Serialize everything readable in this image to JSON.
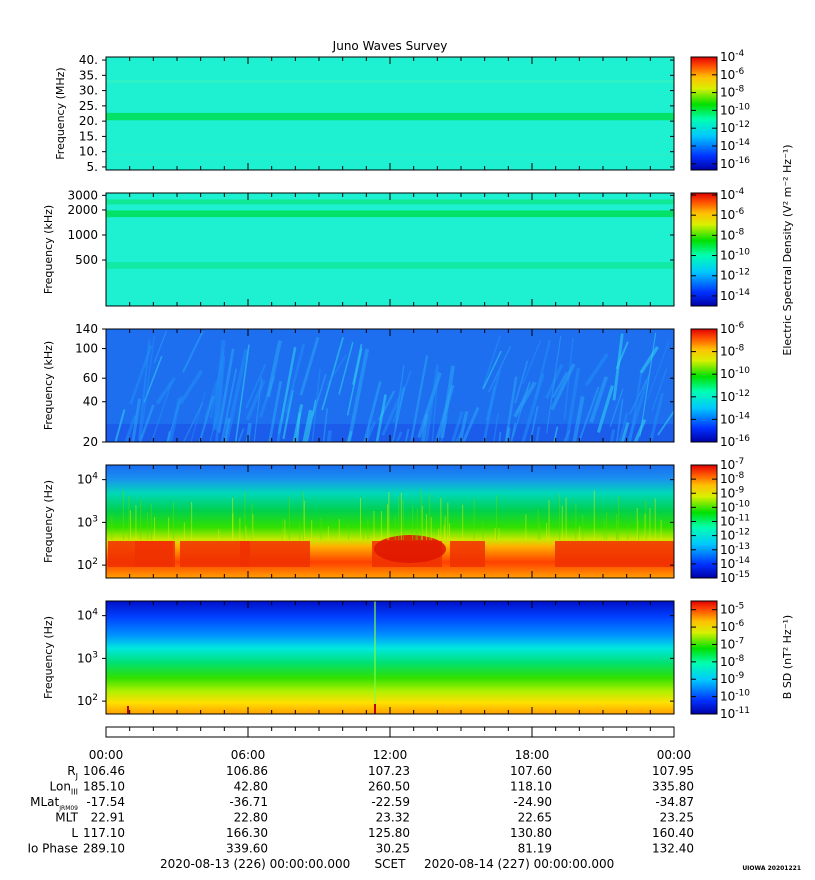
{
  "chart_data": {
    "type": "heatmap",
    "title": "Juno Waves Survey",
    "time_axis": {
      "ticks": [
        "00:00",
        "06:00",
        "12:00",
        "18:00",
        "00:00"
      ],
      "start": "2020-08-13 (226) 00:00:00.000",
      "label": "SCET",
      "end": "2020-08-14 (227) 00:00:00.000"
    },
    "panels": [
      {
        "id": "p1",
        "ylabel": "Frequency (MHz)",
        "yscale": "linear",
        "ylim": [
          4,
          41
        ],
        "yticks": [
          {
            "v": 40,
            "t": "40."
          },
          {
            "v": 35,
            "t": "35."
          },
          {
            "v": 30,
            "t": "30."
          },
          {
            "v": 25,
            "t": "25."
          },
          {
            "v": 20,
            "t": "20."
          },
          {
            "v": 15,
            "t": "15."
          },
          {
            "v": 10,
            "t": "10."
          },
          {
            "v": 5,
            "t": "5."
          }
        ],
        "colorbar": {
          "range_exp": [
            -16.7,
            -4
          ],
          "ticks": [
            {
              "e": -4,
              "t": "10",
              "s": "-4"
            },
            {
              "e": -6,
              "t": "10",
              "s": "-6"
            },
            {
              "e": -8,
              "t": "10",
              "s": "-8"
            },
            {
              "e": -10,
              "t": "10",
              "s": "-10"
            },
            {
              "e": -12,
              "t": "10",
              "s": "-12"
            },
            {
              "e": -14,
              "t": "10",
              "s": "-14"
            },
            {
              "e": -16,
              "t": "10",
              "s": "-16"
            }
          ]
        },
        "style": "flat",
        "base": "#1ef0d2",
        "bands": [
          {
            "v": 21.5,
            "w": 1.2,
            "c": "#00e05a"
          },
          {
            "v": 33,
            "w": 0.5,
            "c": "#2ff2c4"
          },
          {
            "v": 9,
            "w": 0.4,
            "c": "#28f0c8"
          }
        ]
      },
      {
        "id": "p2",
        "ylabel": "Frequency (kHz)",
        "yscale": "log",
        "ylim": [
          140,
          3200
        ],
        "yticks": [
          {
            "v": 3000,
            "t": "3000"
          },
          {
            "v": 2000,
            "t": "2000"
          },
          {
            "v": 1000,
            "t": "1000"
          },
          {
            "v": 500,
            "t": "500"
          }
        ],
        "colorbar": {
          "range_exp": [
            -15,
            -3.8
          ],
          "ticks": [
            {
              "e": -4,
              "t": "10",
              "s": "-4"
            },
            {
              "e": -6,
              "t": "10",
              "s": "-6"
            },
            {
              "e": -8,
              "t": "10",
              "s": "-8"
            },
            {
              "e": -10,
              "t": "10",
              "s": "-10"
            },
            {
              "e": -12,
              "t": "10",
              "s": "-12"
            },
            {
              "e": -14,
              "t": "10",
              "s": "-14"
            }
          ]
        },
        "style": "flat",
        "base": "#1ef0d2",
        "bands": [
          {
            "v": 1800,
            "w": 0.04,
            "c": "#00e05a"
          },
          {
            "v": 2500,
            "w": 0.03,
            "c": "#10e890"
          },
          {
            "v": 430,
            "w": 0.04,
            "c": "#10e8a0"
          }
        ]
      },
      {
        "id": "p3",
        "ylabel": "Frequency (kHz)",
        "yscale": "log",
        "ylim": [
          20,
          140
        ],
        "yticks": [
          {
            "v": 140,
            "t": "140"
          },
          {
            "v": 100,
            "t": "100"
          },
          {
            "v": 60,
            "t": "60"
          },
          {
            "v": 40,
            "t": "40"
          },
          {
            "v": 20,
            "t": "20"
          }
        ],
        "colorbar": {
          "range_exp": [
            -16,
            -6
          ],
          "ticks": [
            {
              "e": -6,
              "t": "10",
              "s": "-6"
            },
            {
              "e": -8,
              "t": "10",
              "s": "-8"
            },
            {
              "e": -10,
              "t": "10",
              "s": "-10"
            },
            {
              "e": -12,
              "t": "10",
              "s": "-12"
            },
            {
              "e": -14,
              "t": "10",
              "s": "-14"
            },
            {
              "e": -16,
              "t": "10",
              "s": "-16"
            }
          ]
        },
        "style": "streaks",
        "base": "#1e6ef0"
      },
      {
        "id": "p4",
        "ylabel": "Frequency (Hz)",
        "yscale": "log",
        "ylim": [
          50,
          22000
        ],
        "yticks": [
          {
            "v": 10000,
            "t": "10",
            "s": "4"
          },
          {
            "v": 1000,
            "t": "10",
            "s": "3"
          },
          {
            "v": 100,
            "t": "10",
            "s": "2"
          }
        ],
        "colorbar": {
          "range_exp": [
            -15,
            -7
          ],
          "ticks": [
            {
              "e": -7,
              "t": "10",
              "s": "-7"
            },
            {
              "e": -8,
              "t": "10",
              "s": "-8"
            },
            {
              "e": -9,
              "t": "10",
              "s": "-9"
            },
            {
              "e": -10,
              "t": "10",
              "s": "-10"
            },
            {
              "e": -11,
              "t": "10",
              "s": "-11"
            },
            {
              "e": -12,
              "t": "10",
              "s": "-12"
            },
            {
              "e": -13,
              "t": "10",
              "s": "-13"
            },
            {
              "e": -14,
              "t": "10",
              "s": "-14"
            },
            {
              "e": -15,
              "t": "10",
              "s": "-15"
            }
          ]
        },
        "style": "electric_low",
        "base": "#00c850"
      },
      {
        "id": "p5",
        "ylabel": "Frequency (Hz)",
        "yscale": "log",
        "ylim": [
          50,
          22000
        ],
        "yticks": [
          {
            "v": 10000,
            "t": "10",
            "s": "4"
          },
          {
            "v": 1000,
            "t": "10",
            "s": "3"
          },
          {
            "v": 100,
            "t": "10",
            "s": "2"
          }
        ],
        "colorbar": {
          "range_exp": [
            -11,
            -4.5
          ],
          "ticks": [
            {
              "e": -5,
              "t": "10",
              "s": "-5"
            },
            {
              "e": -6,
              "t": "10",
              "s": "-6"
            },
            {
              "e": -7,
              "t": "10",
              "s": "-7"
            },
            {
              "e": -8,
              "t": "10",
              "s": "-8"
            },
            {
              "e": -9,
              "t": "10",
              "s": "-9"
            },
            {
              "e": -10,
              "t": "10",
              "s": "-10"
            },
            {
              "e": -11,
              "t": "10",
              "s": "-11"
            }
          ]
        },
        "style": "magnetic",
        "base": "#00c850"
      }
    ],
    "colorbar_labels": {
      "electric": "Electric Spectral Density (V² m⁻² Hz⁻¹)",
      "magnetic": "B SD (nT² Hz⁻¹)"
    },
    "ephemeris": {
      "rows": [
        {
          "label": "R",
          "sub": "J",
          "values": [
            "106.46",
            "106.86",
            "107.23",
            "107.60",
            "107.95"
          ]
        },
        {
          "label": "Lon",
          "sub": "III",
          "values": [
            "185.10",
            "42.80",
            "260.50",
            "118.10",
            "335.80"
          ]
        },
        {
          "label": "MLat",
          "sub": "JRM09",
          "values": [
            "-17.54",
            "-36.71",
            "-22.59",
            "-24.90",
            "-34.87"
          ]
        },
        {
          "label": "MLT",
          "sub": "",
          "values": [
            "22.91",
            "22.80",
            "23.32",
            "22.65",
            "23.25"
          ]
        },
        {
          "label": "L",
          "sub": "",
          "values": [
            "117.10",
            "166.30",
            "125.80",
            "130.80",
            "160.40"
          ]
        },
        {
          "label": "Io Phase",
          "sub": "",
          "values": [
            "289.10",
            "339.60",
            "30.25",
            "81.19",
            "132.40"
          ]
        }
      ]
    },
    "credit": "UIOWA 20201221"
  }
}
